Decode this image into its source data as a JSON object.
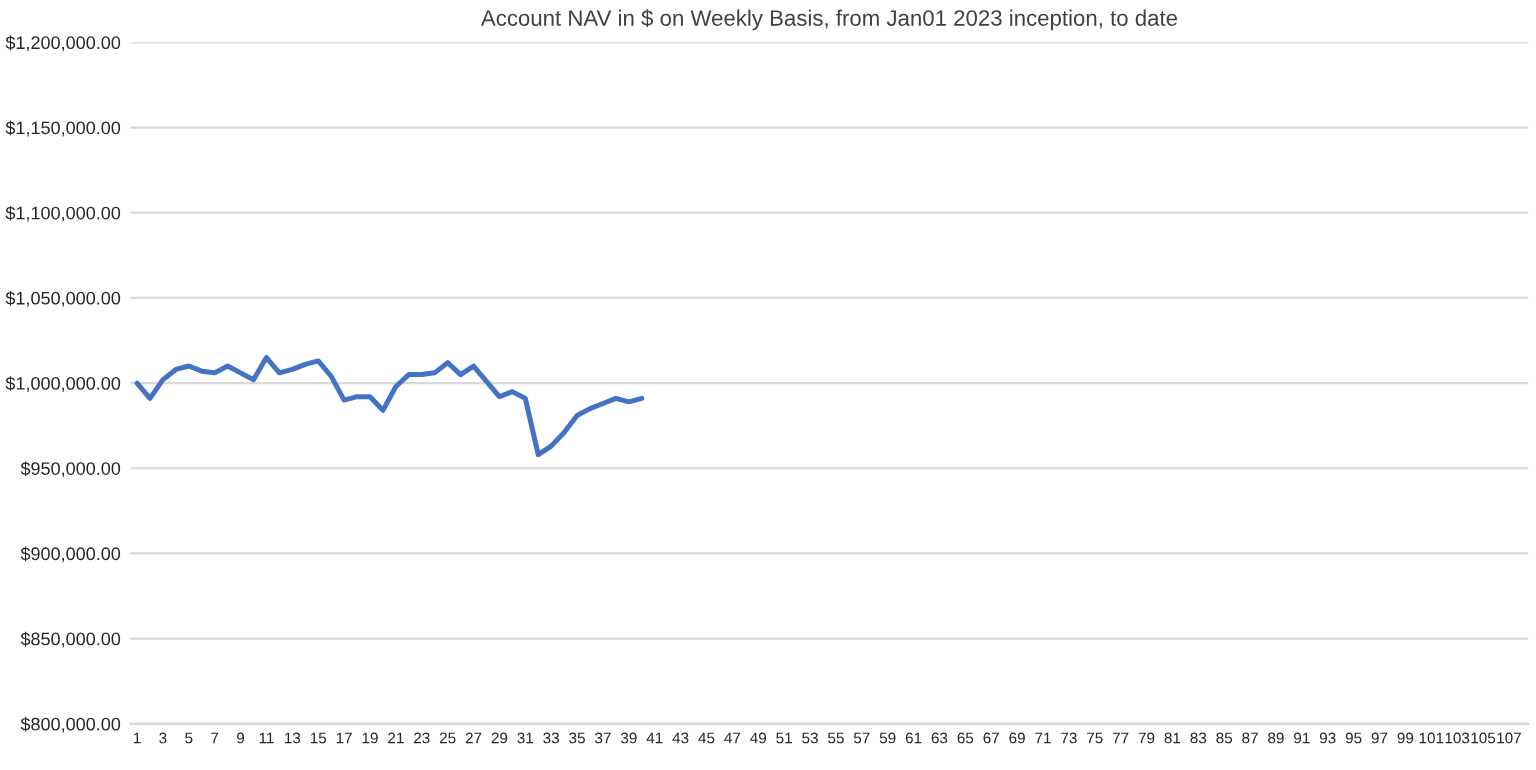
{
  "chart_data": {
    "type": "line",
    "title": "Account NAV in $ on Weekly Basis, from Jan01 2023 inception, to date",
    "categories": [
      "1",
      null,
      "3",
      null,
      "5",
      null,
      "7",
      null,
      "9",
      null,
      "11",
      null,
      "13",
      null,
      "15",
      null,
      "17",
      null,
      "19",
      null,
      "21",
      null,
      "23",
      null,
      "25",
      null,
      "27",
      null,
      "29",
      null,
      "31",
      null,
      "33",
      null,
      "35",
      null,
      "37",
      null,
      "39",
      null,
      "41",
      null,
      "43",
      null,
      "45",
      null,
      "47",
      null,
      "49",
      null,
      "51",
      null,
      "53",
      null,
      "55",
      null,
      "57",
      null,
      "59",
      null,
      "61",
      null,
      "63",
      null,
      "65",
      null,
      "67",
      null,
      "69",
      null,
      "71",
      null,
      "73",
      null,
      "75",
      null,
      "77",
      null,
      "79",
      null,
      "81",
      null,
      "83",
      null,
      "85",
      null,
      "87",
      null,
      "89",
      null,
      "91",
      null,
      "93",
      null,
      "95",
      null,
      "97",
      null,
      "99",
      null,
      "101",
      null,
      "103",
      null,
      "105",
      null,
      "107",
      null
    ],
    "series": [
      {
        "color": "#4472c4",
        "values": [
          1000000,
          991000,
          1002000,
          1008000,
          1010000,
          1007000,
          1006000,
          1010000,
          1006000,
          1002000,
          1015000,
          1006000,
          1008000,
          1011000,
          1013000,
          1004000,
          990000,
          992000,
          992000,
          984000,
          998000,
          1005000,
          1005000,
          1006000,
          1012000,
          1005000,
          1010000,
          1001000,
          992000,
          995000,
          991000,
          958000,
          963000,
          971000,
          981000,
          985000,
          988000,
          991000,
          989000,
          991000,
          null,
          null,
          null,
          null,
          null,
          null,
          null,
          null,
          null,
          null,
          null,
          null,
          null,
          null,
          null,
          null,
          null,
          null,
          null,
          null,
          null,
          null,
          null,
          null,
          null,
          null,
          null,
          null,
          null,
          null,
          null,
          null,
          null,
          null,
          null,
          null,
          null,
          null,
          null,
          null,
          null,
          null,
          null,
          null,
          null,
          null,
          null,
          null,
          null,
          null,
          null,
          null,
          null,
          null,
          null,
          null,
          null,
          null,
          null,
          null,
          null,
          null,
          null,
          null,
          null,
          null,
          null,
          null
        ]
      }
    ],
    "ylim": [
      800000,
      1200000
    ],
    "yticks": [
      {
        "value": 800000,
        "label": "$800,000.00"
      },
      {
        "value": 850000,
        "label": "$850,000.00"
      },
      {
        "value": 900000,
        "label": "$900,000.00"
      },
      {
        "value": 950000,
        "label": "$950,000.00"
      },
      {
        "value": 1000000,
        "label": "$1,000,000.00"
      },
      {
        "value": 1050000,
        "label": "$1,050,000.00"
      },
      {
        "value": 1100000,
        "label": "$1,100,000.00"
      },
      {
        "value": 1150000,
        "label": "$1,150,000.00"
      },
      {
        "value": 1200000,
        "label": "$1,200,000.00"
      }
    ],
    "grid": "y",
    "legend": false,
    "marker": "none",
    "line_style": "solid"
  }
}
